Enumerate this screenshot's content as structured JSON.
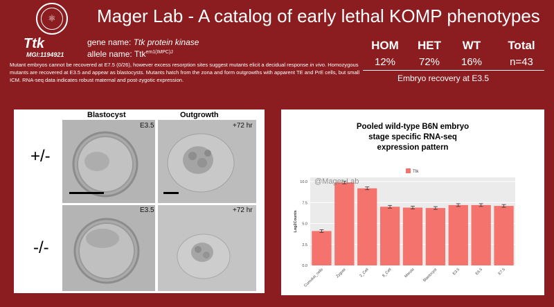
{
  "header": {
    "title": "Mager Lab - A catalog of early lethal KOMP phenotypes",
    "logo": "seal-logo"
  },
  "gene": {
    "symbol": "Ttk",
    "mgi": "MGI:1194921",
    "gene_label": "gene name: ",
    "gene_name": "Ttk protein kinase",
    "allele_label": "allele name: ",
    "allele_base": "Ttk",
    "allele_sup": "em1(IMPC)J"
  },
  "description": {
    "p1": "Mutant embryos cannot be recovered at E7.5 (0/26), however excess resorption sites suggest mutants elicit a decidual response ",
    "p_italic": "in vivo",
    "p2": ". Homozygous mutants are recovered at E3.5 and appear as blastocysts. Mutants hatch from the zona and form outgrowths with apparent TE and PrE cells, but small ICM. RNA-seq data indicates robust maternal and post-zygotic expression."
  },
  "stats": {
    "headers": [
      "HOM",
      "HET",
      "WT",
      "Total"
    ],
    "values": [
      "12%",
      "72%",
      "16%",
      "n=43"
    ],
    "caption": "Embryo recovery at E3.5"
  },
  "images": {
    "col_blastocyst": "Blastocyst",
    "col_outgrowth": "Outgrowth",
    "row_het": "+/-",
    "row_hom": "-/-",
    "stage_e35": "E3.5",
    "stage_72": "+72 hr"
  },
  "chart_data": {
    "type": "bar",
    "title_lines": [
      "Pooled wild-type B6N embryo",
      "stage specific RNA-seq",
      "expression pattern"
    ],
    "legend": "Ttk",
    "watermark": "@Mager-Lab",
    "ylabel": "Log2Counts",
    "xlabel": "",
    "ylim": [
      0,
      10.5
    ],
    "yticks": [
      "0.0",
      "2.5",
      "5.0",
      "7.5",
      "10.0"
    ],
    "categories": [
      "Cumulus_cells",
      "Zygote",
      "2_Cell",
      "8_Cell",
      "Morula",
      "Blastocyst",
      "E3.5",
      "E6.5",
      "E7.5"
    ],
    "series": [
      {
        "name": "Ttk",
        "values": [
          4.1,
          9.9,
          9.2,
          7.0,
          6.9,
          6.85,
          7.2,
          7.2,
          7.1
        ]
      }
    ],
    "color": "#f4736d"
  }
}
